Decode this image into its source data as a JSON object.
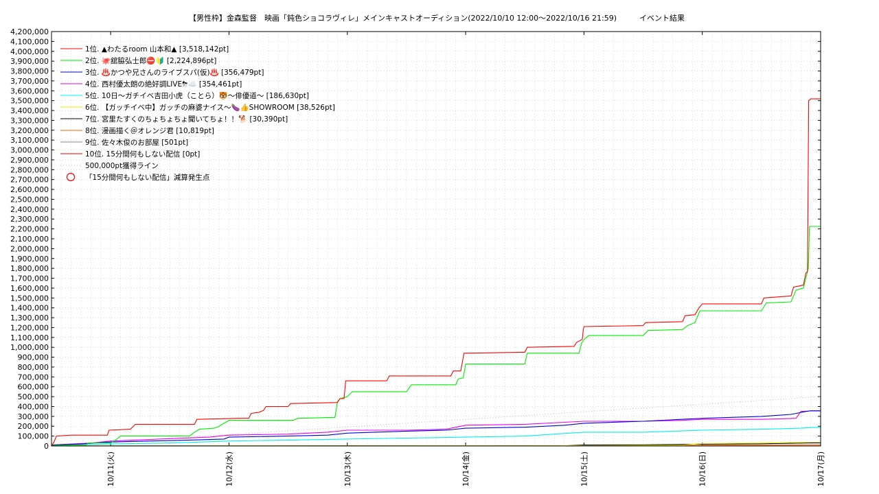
{
  "chart_data": {
    "type": "line",
    "title": "【男性枠】金森監督　映画「鈍色ショコラヴィレ」メインキャストオーディション(2022/10/10 12:00〜2022/10/16 21:59)　　　イベント結果",
    "xlabel": "",
    "ylabel": "",
    "ylim": [
      0,
      4200000
    ],
    "xlim": [
      "2022-10-10 12:00",
      "2022-10-17 00:00"
    ],
    "grid": true,
    "legend_position": "top-left",
    "y_ticks": [
      0,
      100000,
      200000,
      300000,
      400000,
      500000,
      600000,
      700000,
      800000,
      900000,
      1000000,
      1100000,
      1200000,
      1300000,
      1400000,
      1500000,
      1600000,
      1700000,
      1800000,
      1900000,
      2000000,
      2100000,
      2200000,
      2300000,
      2400000,
      2500000,
      2600000,
      2700000,
      2800000,
      2900000,
      3000000,
      3100000,
      3200000,
      3300000,
      3400000,
      3500000,
      3600000,
      3700000,
      3800000,
      3900000,
      4000000,
      4100000,
      4200000
    ],
    "y_tick_labels": [
      "0",
      "100,000",
      "200,000",
      "300,000",
      "400,000",
      "500,000",
      "600,000",
      "700,000",
      "800,000",
      "900,000",
      "1,000,000",
      "1,100,000",
      "1,200,000",
      "1,300,000",
      "1,400,000",
      "1,500,000",
      "1,600,000",
      "1,700,000",
      "1,800,000",
      "1,900,000",
      "2,000,000",
      "2,100,000",
      "2,200,000",
      "2,300,000",
      "2,400,000",
      "2,500,000",
      "2,600,000",
      "2,700,000",
      "2,800,000",
      "2,900,000",
      "3,000,000",
      "3,100,000",
      "3,200,000",
      "3,300,000",
      "3,400,000",
      "3,500,000",
      "3,600,000",
      "3,700,000",
      "3,800,000",
      "3,900,000",
      "4,000,000",
      "4,100,000",
      "4,200,000"
    ],
    "x_ticks": [
      {
        "t": "2022-10-11 00:00",
        "label": "10/11(火)"
      },
      {
        "t": "2022-10-12 00:00",
        "label": "10/12(水)"
      },
      {
        "t": "2022-10-13 00:00",
        "label": "10/13(木)"
      },
      {
        "t": "2022-10-14 00:00",
        "label": "10/14(金)"
      },
      {
        "t": "2022-10-15 00:00",
        "label": "10/15(土)"
      },
      {
        "t": "2022-10-16 00:00",
        "label": "10/16(日)"
      },
      {
        "t": "2022-10-17 00:00",
        "label": "10/17(月)"
      }
    ],
    "series": [
      {
        "name": "1位. ▲わたるroom 山本和▲ [3,518,142pt]",
        "color": "#ff0000",
        "style": "solid",
        "points": [
          [
            "2022-10-10 12:00",
            0
          ],
          [
            "2022-10-10 12:30",
            40000
          ],
          [
            "2022-10-10 13:00",
            100000
          ],
          [
            "2022-10-10 16:00",
            110000
          ],
          [
            "2022-10-10 23:20",
            110000
          ],
          [
            "2022-10-10 23:40",
            160000
          ],
          [
            "2022-10-11 04:00",
            170000
          ],
          [
            "2022-10-11 05:00",
            220000
          ],
          [
            "2022-10-11 17:00",
            220000
          ],
          [
            "2022-10-11 17:30",
            270000
          ],
          [
            "2022-10-12 02:00",
            280000
          ],
          [
            "2022-10-12 04:00",
            280000
          ],
          [
            "2022-10-12 04:30",
            330000
          ],
          [
            "2022-10-12 06:00",
            340000
          ],
          [
            "2022-10-12 07:00",
            360000
          ],
          [
            "2022-10-12 07:30",
            400000
          ],
          [
            "2022-10-12 12:00",
            400000
          ],
          [
            "2022-10-12 12:30",
            430000
          ],
          [
            "2022-10-12 22:00",
            440000
          ],
          [
            "2022-10-12 22:30",
            480000
          ],
          [
            "2022-10-12 23:20",
            480000
          ],
          [
            "2022-10-12 23:40",
            660000
          ],
          [
            "2022-10-13 08:00",
            660000
          ],
          [
            "2022-10-13 08:30",
            710000
          ],
          [
            "2022-10-13 21:00",
            710000
          ],
          [
            "2022-10-13 21:30",
            760000
          ],
          [
            "2022-10-13 23:00",
            760000
          ],
          [
            "2022-10-13 23:40",
            940000
          ],
          [
            "2022-10-14 12:00",
            950000
          ],
          [
            "2022-10-14 12:30",
            1000000
          ],
          [
            "2022-10-14 22:00",
            1010000
          ],
          [
            "2022-10-14 22:30",
            1050000
          ],
          [
            "2022-10-14 23:40",
            1080000
          ],
          [
            "2022-10-14 23:50",
            1170000
          ],
          [
            "2022-10-15 00:00",
            1210000
          ],
          [
            "2022-10-15 12:00",
            1220000
          ],
          [
            "2022-10-15 12:30",
            1250000
          ],
          [
            "2022-10-15 20:00",
            1260000
          ],
          [
            "2022-10-15 20:30",
            1320000
          ],
          [
            "2022-10-15 22:30",
            1330000
          ],
          [
            "2022-10-15 23:20",
            1400000
          ],
          [
            "2022-10-16 00:00",
            1440000
          ],
          [
            "2022-10-16 12:00",
            1440000
          ],
          [
            "2022-10-16 12:30",
            1500000
          ],
          [
            "2022-10-16 18:00",
            1520000
          ],
          [
            "2022-10-16 18:30",
            1610000
          ],
          [
            "2022-10-16 20:30",
            1630000
          ],
          [
            "2022-10-16 21:00",
            1750000
          ],
          [
            "2022-10-16 21:20",
            1770000
          ],
          [
            "2022-10-16 21:35",
            3500000
          ],
          [
            "2022-10-16 21:59",
            3518142
          ],
          [
            "2022-10-17 00:00",
            3518142
          ]
        ]
      },
      {
        "name": "2位. 🐙舘脇弘士郎⛔🔰 [2,224,896pt]",
        "color": "#00ee00",
        "style": "solid",
        "points": [
          [
            "2022-10-10 12:00",
            5000
          ],
          [
            "2022-10-10 19:00",
            10000
          ],
          [
            "2022-10-10 19:30",
            30000
          ],
          [
            "2022-10-11 00:00",
            30000
          ],
          [
            "2022-10-11 01:00",
            60000
          ],
          [
            "2022-10-11 02:00",
            100000
          ],
          [
            "2022-10-11 16:00",
            100000
          ],
          [
            "2022-10-11 17:00",
            140000
          ],
          [
            "2022-10-11 18:00",
            170000
          ],
          [
            "2022-10-11 21:00",
            180000
          ],
          [
            "2022-10-11 22:00",
            200000
          ],
          [
            "2022-10-11 23:00",
            230000
          ],
          [
            "2022-10-12 00:00",
            260000
          ],
          [
            "2022-10-12 13:00",
            260000
          ],
          [
            "2022-10-12 14:00",
            280000
          ],
          [
            "2022-10-12 21:30",
            290000
          ],
          [
            "2022-10-12 22:00",
            450000
          ],
          [
            "2022-10-12 22:30",
            480000
          ],
          [
            "2022-10-13 00:00",
            500000
          ],
          [
            "2022-10-13 01:00",
            550000
          ],
          [
            "2022-10-13 12:00",
            550000
          ],
          [
            "2022-10-13 13:00",
            620000
          ],
          [
            "2022-10-13 22:00",
            620000
          ],
          [
            "2022-10-13 22:30",
            680000
          ],
          [
            "2022-10-13 23:30",
            690000
          ],
          [
            "2022-10-14 00:00",
            830000
          ],
          [
            "2022-10-14 12:00",
            830000
          ],
          [
            "2022-10-14 12:30",
            940000
          ],
          [
            "2022-10-14 23:00",
            940000
          ],
          [
            "2022-10-14 23:30",
            1040000
          ],
          [
            "2022-10-15 00:00",
            1080000
          ],
          [
            "2022-10-15 01:00",
            1120000
          ],
          [
            "2022-10-15 12:00",
            1120000
          ],
          [
            "2022-10-15 13:00",
            1170000
          ],
          [
            "2022-10-15 20:00",
            1180000
          ],
          [
            "2022-10-15 21:00",
            1220000
          ],
          [
            "2022-10-15 22:30",
            1250000
          ],
          [
            "2022-10-15 23:30",
            1370000
          ],
          [
            "2022-10-16 12:00",
            1370000
          ],
          [
            "2022-10-16 13:00",
            1450000
          ],
          [
            "2022-10-16 18:00",
            1460000
          ],
          [
            "2022-10-16 19:00",
            1580000
          ],
          [
            "2022-10-16 20:30",
            1600000
          ],
          [
            "2022-10-16 21:30",
            1800000
          ],
          [
            "2022-10-16 21:45",
            2224896
          ],
          [
            "2022-10-17 00:00",
            2224896
          ]
        ]
      },
      {
        "name": "3位. ♨️かつや兄さんのライブスパ(仮)♨️ [356,479pt]",
        "color": "#0000dd",
        "style": "solid",
        "points": [
          [
            "2022-10-10 12:00",
            10000
          ],
          [
            "2022-10-10 18:00",
            20000
          ],
          [
            "2022-10-11 00:00",
            40000
          ],
          [
            "2022-10-11 08:00",
            50000
          ],
          [
            "2022-10-11 16:00",
            60000
          ],
          [
            "2022-10-11 23:00",
            70000
          ],
          [
            "2022-10-12 00:00",
            90000
          ],
          [
            "2022-10-12 12:00",
            100000
          ],
          [
            "2022-10-12 20:00",
            110000
          ],
          [
            "2022-10-13 00:00",
            130000
          ],
          [
            "2022-10-13 12:00",
            150000
          ],
          [
            "2022-10-13 20:00",
            160000
          ],
          [
            "2022-10-14 00:00",
            180000
          ],
          [
            "2022-10-14 12:00",
            190000
          ],
          [
            "2022-10-14 20:00",
            210000
          ],
          [
            "2022-10-15 00:00",
            230000
          ],
          [
            "2022-10-15 12:00",
            250000
          ],
          [
            "2022-10-16 00:00",
            280000
          ],
          [
            "2022-10-16 12:00",
            300000
          ],
          [
            "2022-10-16 18:00",
            320000
          ],
          [
            "2022-10-16 21:00",
            350000
          ],
          [
            "2022-10-16 21:59",
            356479
          ],
          [
            "2022-10-17 00:00",
            356479
          ]
        ]
      },
      {
        "name": "4位. 西村優太朗の絶好調LIVE⛈☁️ [354,461pt]",
        "color": "#ee00ee",
        "style": "solid",
        "points": [
          [
            "2022-10-10 12:00",
            10000
          ],
          [
            "2022-10-10 20:00",
            30000
          ],
          [
            "2022-10-11 00:00",
            50000
          ],
          [
            "2022-10-11 10:00",
            70000
          ],
          [
            "2022-10-11 20:00",
            90000
          ],
          [
            "2022-10-12 00:00",
            110000
          ],
          [
            "2022-10-12 12:00",
            120000
          ],
          [
            "2022-10-12 20:00",
            140000
          ],
          [
            "2022-10-13 00:00",
            160000
          ],
          [
            "2022-10-13 12:00",
            160000
          ],
          [
            "2022-10-13 20:00",
            170000
          ],
          [
            "2022-10-14 00:00",
            210000
          ],
          [
            "2022-10-14 12:00",
            220000
          ],
          [
            "2022-10-14 20:00",
            240000
          ],
          [
            "2022-10-15 00:00",
            250000
          ],
          [
            "2022-10-15 12:00",
            250000
          ],
          [
            "2022-10-15 20:00",
            260000
          ],
          [
            "2022-10-16 00:00",
            270000
          ],
          [
            "2022-10-16 12:00",
            270000
          ],
          [
            "2022-10-16 19:00",
            280000
          ],
          [
            "2022-10-16 20:00",
            350000
          ],
          [
            "2022-10-16 21:59",
            354461
          ],
          [
            "2022-10-17 00:00",
            354461
          ]
        ]
      },
      {
        "name": "5位. 10日〜ガチイベ吉田小虎（ことら）🐯〜俳優道〜 [186,630pt]",
        "color": "#00eeee",
        "style": "solid",
        "points": [
          [
            "2022-10-10 12:00",
            5000
          ],
          [
            "2022-10-11 00:00",
            20000
          ],
          [
            "2022-10-11 12:00",
            30000
          ],
          [
            "2022-10-12 00:00",
            50000
          ],
          [
            "2022-10-12 12:00",
            60000
          ],
          [
            "2022-10-13 00:00",
            70000
          ],
          [
            "2022-10-13 12:00",
            80000
          ],
          [
            "2022-10-14 00:00",
            90000
          ],
          [
            "2022-10-14 12:00",
            100000
          ],
          [
            "2022-10-14 18:00",
            120000
          ],
          [
            "2022-10-15 00:00",
            140000
          ],
          [
            "2022-10-15 12:00",
            140000
          ],
          [
            "2022-10-16 00:00",
            160000
          ],
          [
            "2022-10-16 12:00",
            170000
          ],
          [
            "2022-10-16 20:00",
            180000
          ],
          [
            "2022-10-16 21:59",
            186630
          ],
          [
            "2022-10-17 00:00",
            186630
          ]
        ]
      },
      {
        "name": "6位. 【ガッチイベ中】ガッチの麻婆ナイス〜🍆👍SHOWROOM [38,526pt]",
        "color": "#eeee00",
        "style": "solid",
        "points": [
          [
            "2022-10-10 12:00",
            0
          ],
          [
            "2022-10-15 00:00",
            3000
          ],
          [
            "2022-10-15 20:00",
            8000
          ],
          [
            "2022-10-16 00:00",
            25000
          ],
          [
            "2022-10-16 12:00",
            30000
          ],
          [
            "2022-10-16 21:59",
            38526
          ],
          [
            "2022-10-17 00:00",
            38526
          ]
        ]
      },
      {
        "name": "7位. 宮里たすくのちょちょちょ聞いてちょ！！🐕 [30,390pt]",
        "color": "#000000",
        "style": "solid",
        "points": [
          [
            "2022-10-10 12:00",
            0
          ],
          [
            "2022-10-14 20:00",
            2000
          ],
          [
            "2022-10-15 00:00",
            10000
          ],
          [
            "2022-10-15 12:00",
            12000
          ],
          [
            "2022-10-16 00:00",
            18000
          ],
          [
            "2022-10-16 12:00",
            22000
          ],
          [
            "2022-10-16 21:59",
            30390
          ],
          [
            "2022-10-17 00:00",
            30390
          ]
        ]
      },
      {
        "name": "8位. 漫画描く＠オレンジ君 [10,819pt]",
        "color": "#ff6600",
        "style": "solid",
        "points": [
          [
            "2022-10-10 12:00",
            0
          ],
          [
            "2022-10-15 00:00",
            2000
          ],
          [
            "2022-10-16 00:00",
            6000
          ],
          [
            "2022-10-16 21:59",
            10819
          ],
          [
            "2022-10-17 00:00",
            10819
          ]
        ]
      },
      {
        "name": "9位. 佐々木俊のお部屋 [501pt]",
        "color": "#888888",
        "style": "solid",
        "points": [
          [
            "2022-10-10 12:00",
            0
          ],
          [
            "2022-10-17 00:00",
            501
          ]
        ]
      },
      {
        "name": "10位. 15分間何もしない配信 [0pt]",
        "color": "#dd0000",
        "style": "solid",
        "points": [
          [
            "2022-10-10 12:00",
            0
          ],
          [
            "2022-10-17 00:00",
            0
          ]
        ]
      },
      {
        "name": "500,000pt獲得ライン",
        "color": "#bbbbbb",
        "style": "dotted",
        "points": [
          [
            "2022-10-10 12:00",
            0
          ],
          [
            "2022-10-17 00:00",
            500000
          ]
        ]
      }
    ],
    "marker_legend": {
      "name": "「15分間何もしない配信」減算発生点",
      "color": "#ff0000",
      "shape": "circle"
    }
  }
}
